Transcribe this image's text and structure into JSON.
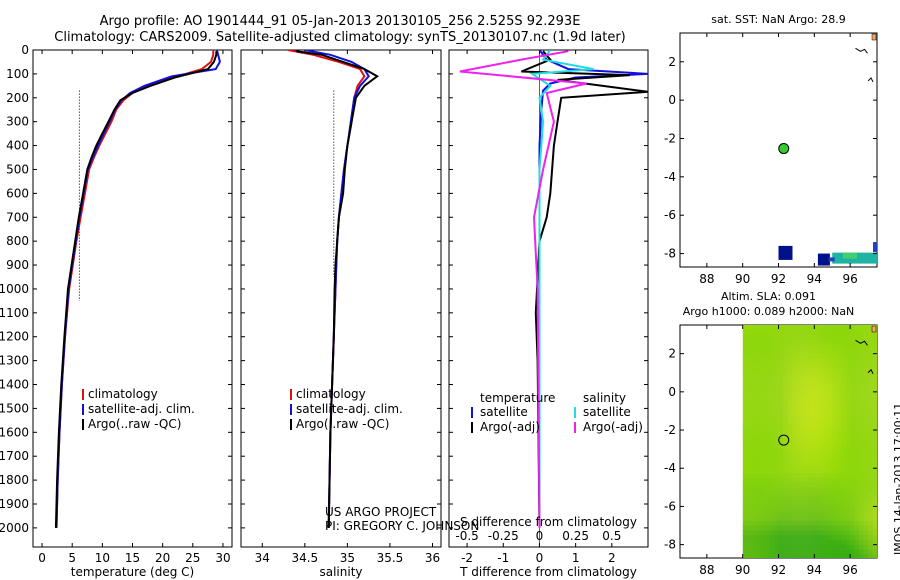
{
  "header": {
    "title_line1": "Argo profile: AO 1901444_91 05-Jan-2013 20130105_256 2.525S 92.293E",
    "title_line2": "Climatology: CARS2009. Satellite-adjusted climatology: synTS_20130107.nc (1.9d later)"
  },
  "credit": {
    "line1": "US ARGO PROJECT",
    "line2": "PI: GREGORY C. JOHNSON"
  },
  "stamp": "IMOS 14-Jan-2013 17:00:11",
  "colors": {
    "climatology": "#dd1111",
    "satellite": "#1111dd",
    "argo": "#000000",
    "argo_salt_adj": "#ee22ee",
    "satellite_salt": "#22dddd"
  },
  "chart_data": [
    {
      "type": "line",
      "id": "temperature",
      "xlabel": "temperature (deg C)",
      "ylabel": "",
      "xlim": [
        -1.5,
        31.5
      ],
      "ylim": [
        2080,
        0
      ],
      "xticks": [
        "0",
        "5",
        "10",
        "15",
        "20",
        "25",
        "30"
      ],
      "xtick_values": [
        0,
        5,
        10,
        15,
        20,
        25,
        30
      ],
      "yticks": [
        "0",
        "100",
        "200",
        "300",
        "400",
        "500",
        "600",
        "700",
        "800",
        "900",
        "1000",
        "1100",
        "1200",
        "1300",
        "1400",
        "1500",
        "1600",
        "1700",
        "1800",
        "1900",
        "2000"
      ],
      "ytick_values": [
        0,
        100,
        200,
        300,
        400,
        500,
        600,
        700,
        800,
        900,
        1000,
        1100,
        1200,
        1300,
        1400,
        1500,
        1600,
        1700,
        1800,
        1900,
        2000
      ],
      "legend": [
        "climatology",
        "satellite-adj. clim.",
        "Argo(..raw -QC)"
      ],
      "series": [
        {
          "name": "climatology",
          "color": "red",
          "x": [
            28.4,
            28.4,
            28.0,
            26.5,
            22.5,
            17.5,
            15.0,
            13.5,
            12.3,
            11.5,
            10.5,
            9.5,
            8.6,
            7.8,
            7.1,
            6.4,
            5.7,
            5.1,
            4.5,
            3.8,
            3.3,
            2.9,
            2.6,
            2.4
          ],
          "y": [
            0,
            20,
            50,
            80,
            110,
            150,
            180,
            210,
            250,
            300,
            350,
            400,
            450,
            500,
            600,
            700,
            800,
            900,
            1000,
            1200,
            1400,
            1600,
            1800,
            2000
          ]
        },
        {
          "name": "satellite-adj. clim.",
          "color": "blue",
          "x": [
            29.0,
            29.2,
            29.5,
            28.8,
            21.5,
            17.0,
            14.6,
            13.2,
            12.1,
            11.2,
            10.2,
            9.3,
            8.4,
            7.6,
            6.9,
            6.2,
            5.6,
            5.0,
            4.4,
            3.8,
            3.3,
            2.9,
            2.6,
            2.4
          ],
          "y": [
            0,
            20,
            50,
            80,
            110,
            150,
            180,
            210,
            250,
            300,
            350,
            400,
            450,
            500,
            600,
            700,
            800,
            900,
            1000,
            1200,
            1400,
            1600,
            1800,
            2000
          ]
        },
        {
          "name": "Argo(..raw -QC)",
          "color": "black",
          "x": [
            28.9,
            28.9,
            28.5,
            27.5,
            22.0,
            18.0,
            15.0,
            13.0,
            12.0,
            11.0,
            10.0,
            9.0,
            8.2,
            7.5,
            6.8,
            6.1,
            5.5,
            4.9,
            4.3,
            3.7,
            3.2,
            2.8,
            2.5,
            2.3
          ],
          "y": [
            5,
            20,
            50,
            80,
            115,
            150,
            180,
            210,
            250,
            300,
            350,
            400,
            450,
            500,
            600,
            700,
            800,
            900,
            1000,
            1200,
            1400,
            1600,
            1800,
            2000
          ]
        }
      ]
    },
    {
      "type": "line",
      "id": "salinity",
      "xlabel": "salinity",
      "xlim": [
        33.75,
        36.1
      ],
      "ylim": [
        2080,
        0
      ],
      "xticks": [
        "34",
        "34.5",
        "35",
        "35.5",
        "36"
      ],
      "xtick_values": [
        34,
        34.5,
        35,
        35.5,
        36
      ],
      "legend": [
        "climatology",
        "satellite-adj. clim.",
        "Argo(..raw -QC)"
      ],
      "series": [
        {
          "name": "climatology",
          "color": "red",
          "x": [
            34.3,
            34.6,
            34.9,
            35.15,
            35.2,
            35.12,
            35.08,
            35.05,
            35.0,
            34.96,
            34.93,
            34.9,
            34.88,
            34.87,
            34.86,
            34.84,
            34.8,
            34.78
          ],
          "y": [
            0,
            20,
            50,
            80,
            110,
            150,
            200,
            300,
            400,
            500,
            600,
            700,
            800,
            900,
            1000,
            1200,
            1600,
            2000
          ]
        },
        {
          "name": "satellite-adj. clim.",
          "color": "blue",
          "x": [
            34.5,
            34.8,
            35.05,
            35.2,
            35.25,
            35.15,
            35.08,
            35.04,
            35.0,
            34.96,
            34.93,
            34.9,
            34.88,
            34.87,
            34.86,
            34.84,
            34.8,
            34.78
          ],
          "y": [
            0,
            20,
            50,
            80,
            110,
            150,
            200,
            300,
            400,
            500,
            600,
            700,
            800,
            900,
            1000,
            1200,
            1600,
            2000
          ]
        },
        {
          "name": "Argo(..raw -QC)",
          "color": "black",
          "x": [
            34.4,
            34.7,
            34.95,
            35.2,
            35.35,
            35.2,
            35.1,
            35.05,
            35.0,
            34.97,
            34.95,
            34.9,
            34.88,
            34.86,
            34.85,
            34.84,
            34.8,
            34.78
          ],
          "y": [
            5,
            20,
            50,
            80,
            110,
            150,
            200,
            300,
            400,
            500,
            600,
            700,
            800,
            900,
            1000,
            1200,
            1600,
            2000
          ]
        }
      ]
    },
    {
      "type": "line",
      "id": "difference",
      "xlabel": "T difference from climatology",
      "xlabel_top": "S difference from climatology",
      "xlim": [
        -2.5,
        3.0
      ],
      "ylim": [
        2080,
        0
      ],
      "xticks": [
        "-2",
        "-1",
        "0",
        "1",
        "2"
      ],
      "xtick_values": [
        -2,
        -1,
        0,
        1,
        2
      ],
      "xticks_salinity": [
        "-0.5",
        "-0.25",
        "0",
        "0.25",
        "0.5"
      ],
      "xtick_salinity_values": [
        -2,
        -1,
        0,
        1,
        2
      ],
      "legend_title_left": "temperature",
      "legend_title_right": "salinity",
      "legend_left": [
        "satellite",
        "Argo(-adj)"
      ],
      "legend_right": [
        "satellite",
        "Argo(-adj)"
      ],
      "series": [
        {
          "name": "satellite",
          "group": "temperature",
          "color": "blue",
          "x": [
            0.0,
            0.2,
            0.8,
            3.0,
            1.0,
            0.3,
            0.1,
            0.05,
            0.0,
            0.0,
            0.0,
            0.0,
            0.0
          ],
          "y": [
            0,
            40,
            80,
            100,
            115,
            140,
            170,
            250,
            400,
            600,
            900,
            1400,
            2000
          ]
        },
        {
          "name": "Argo(-adj)",
          "group": "temperature",
          "color": "black",
          "x": [
            0.1,
            0.3,
            -0.5,
            2.5,
            0.5,
            3.0,
            0.6,
            0.5,
            0.4,
            0.35,
            0.3,
            0.2,
            0.0,
            -0.1,
            -0.05,
            0.0
          ],
          "y": [
            5,
            40,
            90,
            105,
            125,
            175,
            200,
            300,
            400,
            500,
            600,
            700,
            800,
            1100,
            1300,
            2000
          ]
        },
        {
          "name": "satellite",
          "group": "salinity",
          "color": "cyan",
          "x": [
            0.3,
            0.1,
            1.5,
            -0.2,
            0.3,
            0.0,
            0.1,
            0.0,
            0.0,
            0.0
          ],
          "y": [
            0,
            40,
            80,
            100,
            150,
            200,
            300,
            500,
            1000,
            2000
          ]
        },
        {
          "name": "Argo(-adj)",
          "group": "salinity",
          "color": "magenta",
          "x": [
            0.8,
            -0.5,
            -2.2,
            1.3,
            0.2,
            0.4,
            0.1,
            -0.15,
            -0.05,
            0.0
          ],
          "y": [
            5,
            40,
            90,
            140,
            180,
            300,
            500,
            700,
            1000,
            2000
          ]
        }
      ]
    },
    {
      "type": "heatmap",
      "id": "sst_map",
      "title": "sat. SST: NaN Argo: 28.9",
      "xlim": [
        86.5,
        97.5
      ],
      "ylim": [
        -8.7,
        3.5
      ],
      "xticks": [
        "88",
        "90",
        "92",
        "94",
        "96"
      ],
      "xtick_values": [
        88,
        90,
        92,
        94,
        96
      ],
      "yticks": [
        "-8",
        "-6",
        "-4",
        "-2",
        "0",
        "2"
      ],
      "ytick_values": [
        -8,
        -6,
        -4,
        -2,
        0,
        2
      ],
      "argo_position": {
        "lon": 92.293,
        "lat": -2.525
      }
    },
    {
      "type": "heatmap",
      "id": "sla_map",
      "title_line1": "Altim. SLA: 0.091",
      "title_line2": "Argo h1000: 0.089 h2000: NaN",
      "xlim": [
        86.5,
        97.5
      ],
      "ylim": [
        -8.7,
        3.5
      ],
      "xticks": [
        "88",
        "90",
        "92",
        "94",
        "96"
      ],
      "xtick_values": [
        88,
        90,
        92,
        94,
        96
      ],
      "yticks": [
        "-8",
        "-6",
        "-4",
        "-2",
        "0",
        "2"
      ],
      "ytick_values": [
        -8,
        -6,
        -4,
        -2,
        0,
        2
      ],
      "argo_position": {
        "lon": 92.293,
        "lat": -2.525
      }
    }
  ]
}
